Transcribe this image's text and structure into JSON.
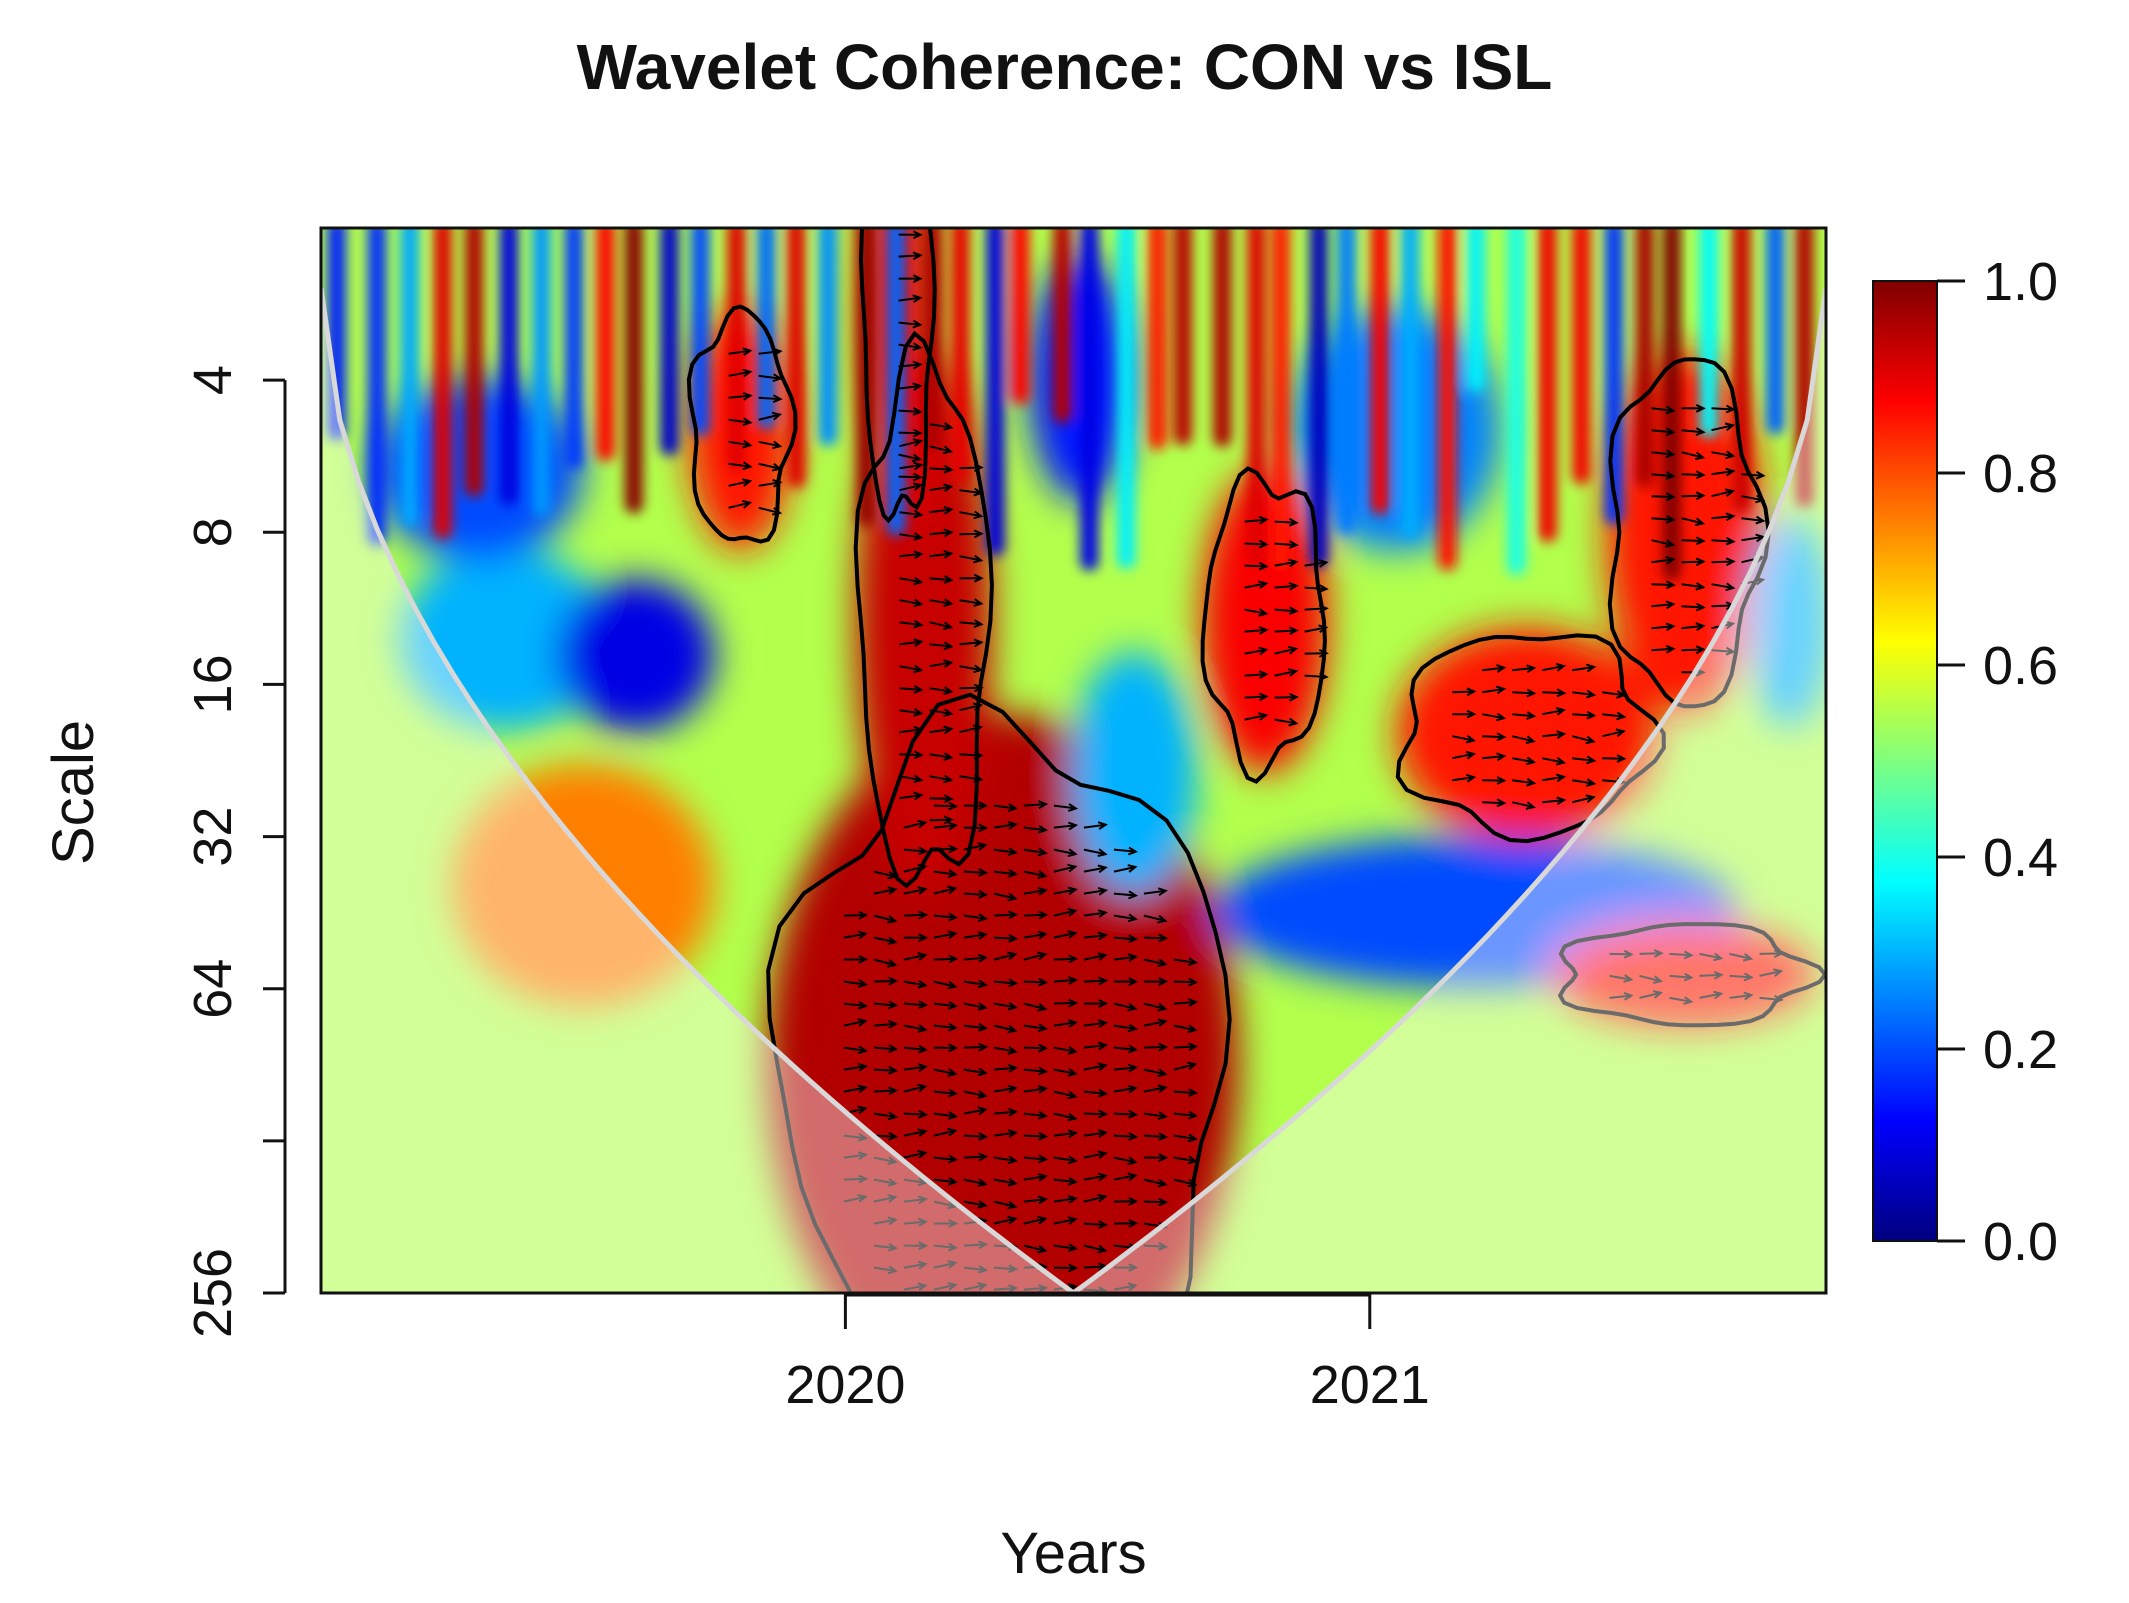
{
  "chart_data": {
    "type": "heatmap",
    "title": "Wavelet Coherence: CON vs ISL",
    "xlabel": "Years",
    "ylabel": "Scale",
    "x_ticks": [
      {
        "value": 2020,
        "label": "2020"
      },
      {
        "value": 2021,
        "label": "2021"
      }
    ],
    "xlim": [
      2019.0,
      2021.87
    ],
    "y_scale": "log2",
    "y_ticks": [
      {
        "value": 4,
        "label": "4"
      },
      {
        "value": 8,
        "label": "8"
      },
      {
        "value": 16,
        "label": "16"
      },
      {
        "value": 32,
        "label": "32"
      },
      {
        "value": 64,
        "label": "64"
      },
      {
        "value": 128,
        "label": ""
      },
      {
        "value": 256,
        "label": "256"
      }
    ],
    "ylim": [
      2,
      256
    ],
    "colorbar": {
      "range": [
        0.0,
        1.0
      ],
      "ticks": [
        {
          "value": 0.0,
          "label": "0.0"
        },
        {
          "value": 0.2,
          "label": "0.2"
        },
        {
          "value": 0.4,
          "label": "0.4"
        },
        {
          "value": 0.6,
          "label": "0.6"
        },
        {
          "value": 0.8,
          "label": "0.8"
        },
        {
          "value": 1.0,
          "label": "1.0"
        }
      ],
      "colors": [
        "#00007F",
        "#0000FF",
        "#007FFF",
        "#00FFFF",
        "#7FFF7F",
        "#FFFF00",
        "#FF7F00",
        "#FF0000",
        "#7F0000"
      ]
    },
    "coherence_regions": [
      {
        "x": 2020.3,
        "scale": 90,
        "sx": 0.45,
        "sy": 2.3,
        "value": 0.95
      },
      {
        "x": 2020.15,
        "scale": 12,
        "sx": 0.13,
        "sy": 1.8,
        "value": 0.93
      },
      {
        "x": 2020.1,
        "scale": 3,
        "sx": 0.07,
        "sy": 1.4,
        "value": 0.9
      },
      {
        "x": 2019.5,
        "scale": 40,
        "sx": 0.25,
        "sy": 0.8,
        "value": 0.75
      },
      {
        "x": 2019.35,
        "scale": 13,
        "sx": 0.2,
        "sy": 0.6,
        "value": 0.3
      },
      {
        "x": 2019.6,
        "scale": 14,
        "sx": 0.15,
        "sy": 0.5,
        "value": 0.1
      },
      {
        "x": 2019.3,
        "scale": 6,
        "sx": 0.2,
        "sy": 0.6,
        "value": 0.2
      },
      {
        "x": 2020.55,
        "scale": 24,
        "sx": 0.12,
        "sy": 0.8,
        "value": 0.3
      },
      {
        "x": 2021.2,
        "scale": 45,
        "sx": 0.5,
        "sy": 0.5,
        "value": 0.2
      },
      {
        "x": 2020.8,
        "scale": 12,
        "sx": 0.12,
        "sy": 1.0,
        "value": 0.88
      },
      {
        "x": 2021.3,
        "scale": 20,
        "sx": 0.25,
        "sy": 0.7,
        "value": 0.85
      },
      {
        "x": 2021.6,
        "scale": 8,
        "sx": 0.15,
        "sy": 1.2,
        "value": 0.85
      },
      {
        "x": 2021.05,
        "scale": 5,
        "sx": 0.2,
        "sy": 0.8,
        "value": 0.25
      },
      {
        "x": 2021.6,
        "scale": 60,
        "sx": 0.25,
        "sy": 0.35,
        "value": 0.85
      },
      {
        "x": 2020.45,
        "scale": 4,
        "sx": 0.1,
        "sy": 0.8,
        "value": 0.15
      },
      {
        "x": 2019.8,
        "scale": 5,
        "sx": 0.1,
        "sy": 0.8,
        "value": 0.85
      },
      {
        "x": 2021.8,
        "scale": 12,
        "sx": 0.08,
        "sy": 0.7,
        "value": 0.3
      }
    ],
    "background_coherence": 0.55,
    "cone_of_influence": true,
    "phase_arrows": "mostly pointing right (in-phase) in high-coherence regions"
  }
}
